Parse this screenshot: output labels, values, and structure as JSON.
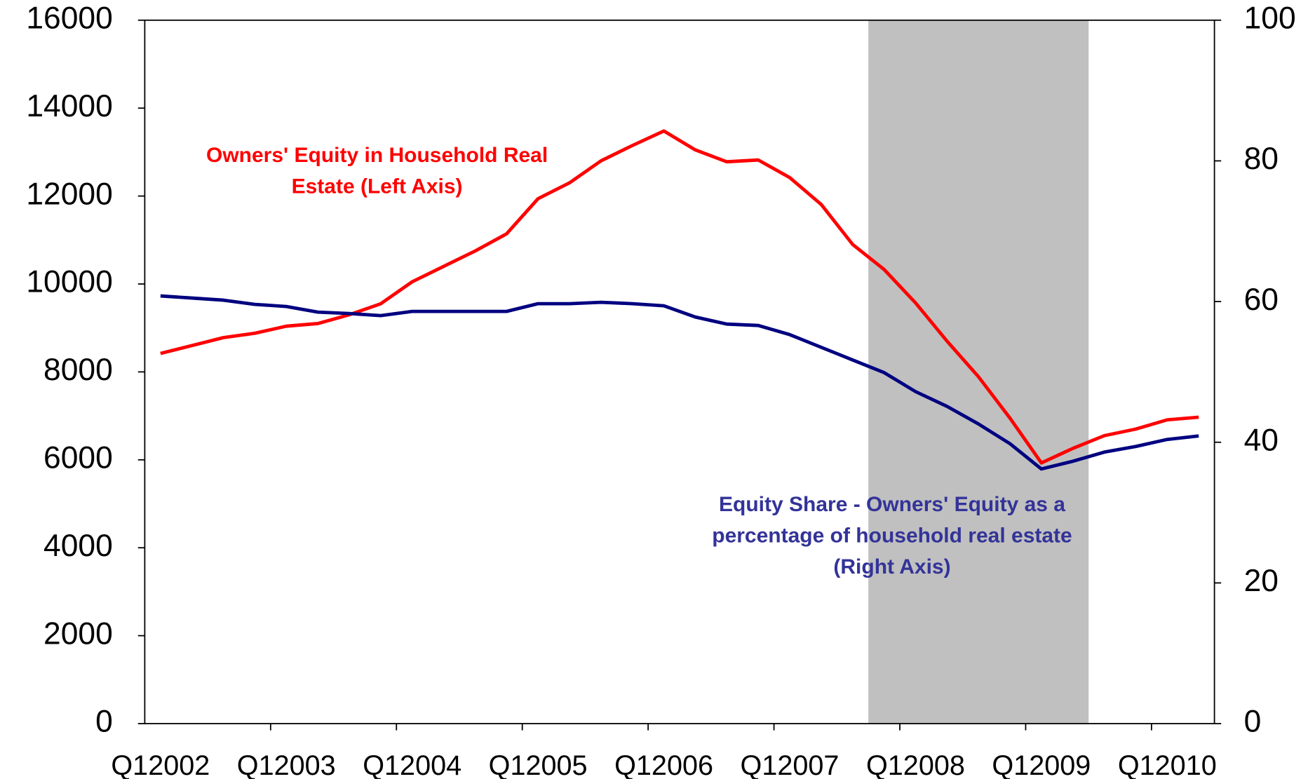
{
  "chart_data": {
    "type": "line",
    "categories": [
      "Q12002",
      null,
      null,
      null,
      "Q12003",
      null,
      null,
      null,
      "Q12004",
      null,
      null,
      null,
      "Q12005",
      null,
      null,
      null,
      "Q12006",
      null,
      null,
      null,
      "Q12007",
      null,
      null,
      null,
      "Q12008",
      null,
      null,
      null,
      "Q12009",
      null,
      null,
      null,
      "Q12010",
      null
    ],
    "series": [
      {
        "name": "Owners' Equity in Household Real Estate (Left Axis)",
        "color": "#ff0000",
        "axis": "y",
        "values": [
          8420,
          8600,
          8780,
          8880,
          9040,
          9100,
          9300,
          9550,
          10050,
          10400,
          10750,
          11140,
          11940,
          12300,
          12800,
          13150,
          13480,
          13050,
          12780,
          12820,
          12420,
          11810,
          10900,
          10330,
          9570,
          8700,
          7890,
          6950,
          5930,
          6260,
          6550,
          6700,
          6910,
          6970
        ]
      },
      {
        "name": "Equity Share - Owners' Equity as a percentage of household real estate (Right Axis)",
        "color": "#000080",
        "axis": "y2",
        "values": [
          60.8,
          60.5,
          60.2,
          59.6,
          59.3,
          58.5,
          58.3,
          58.0,
          58.6,
          58.6,
          58.6,
          58.6,
          59.7,
          59.7,
          59.9,
          59.7,
          59.4,
          57.8,
          56.8,
          56.6,
          55.3,
          53.5,
          51.7,
          49.9,
          47.2,
          45.1,
          42.6,
          39.8,
          36.2,
          37.3,
          38.6,
          39.4,
          40.4,
          40.9
        ]
      }
    ],
    "annotations": [
      {
        "lines": [
          "Owners' Equity in Household Real",
          "Estate (Left Axis)"
        ],
        "color": "#ff0000"
      },
      {
        "lines": [
          "Equity Share - Owners' Equity as a",
          "percentage of household real estate",
          "(Right Axis)"
        ],
        "color": "#333399"
      }
    ],
    "shaded_span": {
      "start_index": 23,
      "end_index": 29,
      "color": "#c0c0c0"
    },
    "ylim": [
      0,
      16000
    ],
    "yticks": [
      0,
      2000,
      4000,
      6000,
      8000,
      10000,
      12000,
      14000,
      16000
    ],
    "y2lim": [
      0,
      100
    ],
    "y2ticks": [
      0,
      20,
      40,
      60,
      80,
      100
    ]
  }
}
